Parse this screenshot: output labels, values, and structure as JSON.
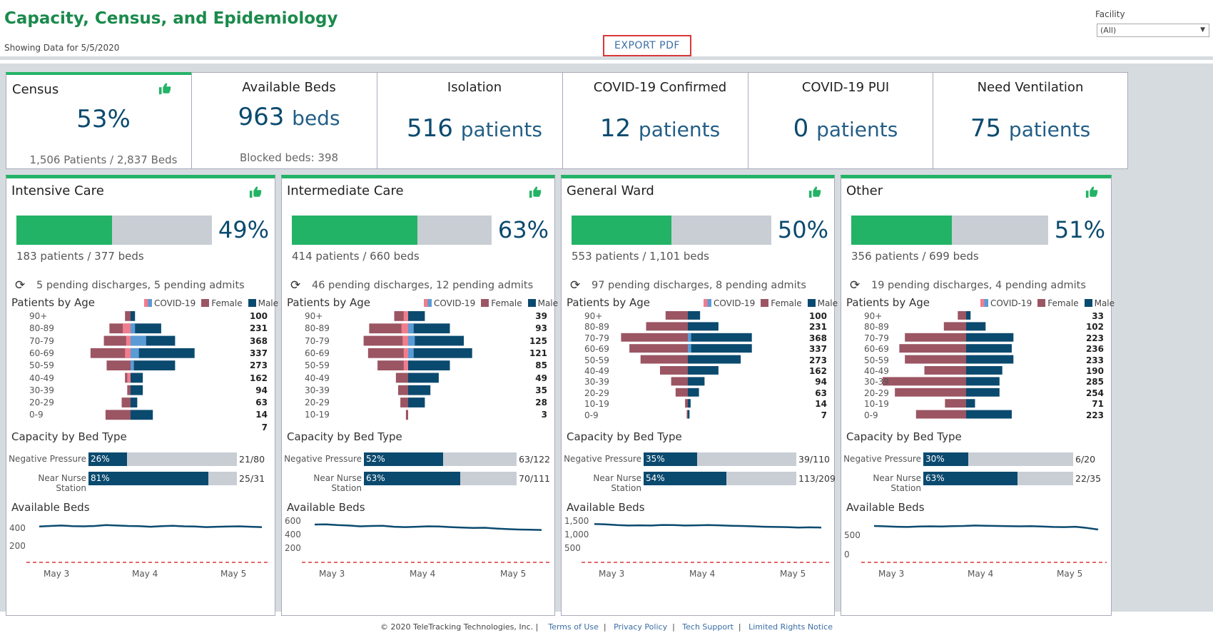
{
  "header": {
    "title": "Capacity, Census, and Epidemiology",
    "subtitle": "Showing Data for 5/5/2020",
    "export_label": "EXPORT PDF",
    "facility_label": "Facility",
    "facility_value": "(All)"
  },
  "kpis": [
    {
      "title": "Census",
      "value": "53%",
      "unit": "",
      "sub": "1,506 Patients / 2,837 Beds"
    },
    {
      "title": "Available Beds",
      "value": "963",
      "unit": "beds",
      "sub": "Blocked beds: 398"
    },
    {
      "title": "Isolation",
      "value": "516",
      "unit": "patients",
      "sub": ""
    },
    {
      "title": "COVID-19 Confirmed",
      "value": "12",
      "unit": "patients",
      "sub": ""
    },
    {
      "title": "COVID-19 PUI",
      "value": "0",
      "unit": "patients",
      "sub": ""
    },
    {
      "title": "Need Ventilation",
      "value": "75",
      "unit": "patients",
      "sub": ""
    }
  ],
  "legend": {
    "covid": "COVID-19",
    "female": "Female",
    "male": "Male"
  },
  "section_labels": {
    "age": "Patients by Age",
    "capacity": "Capacity by Bed Type",
    "available": "Available Beds"
  },
  "colors": {
    "green": "#23b366",
    "grey": "#c8ced4",
    "navy": "#0b4a6f",
    "female": "#9b5563",
    "covid_pink": "#f07d8d",
    "covid_blue": "#5b9bd5",
    "dash_red": "#d9383a"
  },
  "units": [
    {
      "name": "Intensive Care",
      "pct": "49%",
      "fraction": 0.49,
      "count": "183 patients / 377 beds",
      "pending": "5 pending discharges,  5 pending admits",
      "ages": [
        {
          "label": "90+",
          "count": "100",
          "f": 10,
          "m": 8,
          "cf": 0,
          "cm": 0
        },
        {
          "label": "80-89",
          "count": "231",
          "f": 38,
          "m": 55,
          "cf": 14,
          "cm": 8
        },
        {
          "label": "70-79",
          "count": "368",
          "f": 48,
          "m": 80,
          "cf": 8,
          "cm": 28
        },
        {
          "label": "60-69",
          "count": "337",
          "f": 72,
          "m": 115,
          "cf": 10,
          "cm": 15
        },
        {
          "label": "50-59",
          "count": "273",
          "f": 43,
          "m": 80,
          "cf": 0,
          "cm": 6
        },
        {
          "label": "40-49",
          "count": "162",
          "f": 10,
          "m": 22,
          "cf": 6,
          "cm": 0
        },
        {
          "label": "30-39",
          "count": "94",
          "f": 6,
          "m": 22,
          "cf": 0,
          "cm": 0
        },
        {
          "label": "20-29",
          "count": "63",
          "f": 16,
          "m": 12,
          "cf": 0,
          "cm": 0
        },
        {
          "label": "0-9",
          "count": "14",
          "f": 45,
          "m": 40,
          "cf": 0,
          "cm": 0
        }
      ],
      "extra_count": "7",
      "capacity": [
        {
          "label": "Negative Pressure",
          "pct_label": "26%",
          "fraction": 0.26,
          "frac": "21/80"
        },
        {
          "label": "Near Nurse Station",
          "pct_label": "81%",
          "fraction": 0.81,
          "frac": "25/31"
        }
      ],
      "avail_ticks": [
        "400",
        "200"
      ],
      "x_ticks": [
        "May 3",
        "May 4",
        "May 5"
      ]
    },
    {
      "name": "Intermediate Care",
      "pct": "63%",
      "fraction": 0.63,
      "count": "414 patients / 660 beds",
      "pending": "46 pending discharges,  12 pending admits",
      "ages": [
        {
          "label": "90+",
          "count": "39",
          "f": 25,
          "m": 30,
          "cf": 8,
          "cm": 0
        },
        {
          "label": "80-89",
          "count": "93",
          "f": 70,
          "m": 75,
          "cf": 12,
          "cm": 10
        },
        {
          "label": "70-79",
          "count": "125",
          "f": 80,
          "m": 100,
          "cf": 10,
          "cm": 12
        },
        {
          "label": "60-69",
          "count": "121",
          "f": 72,
          "m": 115,
          "cf": 8,
          "cm": 10
        },
        {
          "label": "50-59",
          "count": "85",
          "f": 55,
          "m": 75,
          "cf": 8,
          "cm": 0
        },
        {
          "label": "40-49",
          "count": "49",
          "f": 22,
          "m": 55,
          "cf": 0,
          "cm": 0
        },
        {
          "label": "30-39",
          "count": "35",
          "f": 18,
          "m": 40,
          "cf": 0,
          "cm": 0
        },
        {
          "label": "20-29",
          "count": "28",
          "f": 14,
          "m": 30,
          "cf": 0,
          "cm": 0
        },
        {
          "label": "10-19",
          "count": "3",
          "f": 4,
          "m": 0,
          "cf": 0,
          "cm": 0
        }
      ],
      "extra_count": "",
      "capacity": [
        {
          "label": "Negative Pressure",
          "pct_label": "52%",
          "fraction": 0.52,
          "frac": "63/122"
        },
        {
          "label": "Near Nurse Station",
          "pct_label": "63%",
          "fraction": 0.63,
          "frac": "70/111"
        }
      ],
      "avail_ticks": [
        "600",
        "400",
        "200"
      ],
      "x_ticks": [
        "May 3",
        "May 4",
        "May 5"
      ]
    },
    {
      "name": "General Ward",
      "pct": "50%",
      "fraction": 0.5,
      "count": "553 patients / 1,101 beds",
      "pending": "97 pending discharges,  8 pending admits",
      "ages": [
        {
          "label": "90+",
          "count": "100",
          "f": 40,
          "m": 22,
          "cf": 0,
          "cm": 0
        },
        {
          "label": "80-89",
          "count": "231",
          "f": 75,
          "m": 55,
          "cf": 0,
          "cm": 0
        },
        {
          "label": "70-79",
          "count": "368",
          "f": 120,
          "m": 115,
          "cf": 0,
          "cm": 6
        },
        {
          "label": "60-69",
          "count": "337",
          "f": 105,
          "m": 115,
          "cf": 0,
          "cm": 6
        },
        {
          "label": "50-59",
          "count": "273",
          "f": 85,
          "m": 95,
          "cf": 0,
          "cm": 0
        },
        {
          "label": "40-49",
          "count": "162",
          "f": 50,
          "m": 55,
          "cf": 0,
          "cm": 0
        },
        {
          "label": "30-39",
          "count": "94",
          "f": 30,
          "m": 30,
          "cf": 0,
          "cm": 0
        },
        {
          "label": "20-29",
          "count": "63",
          "f": 22,
          "m": 20,
          "cf": 0,
          "cm": 0
        },
        {
          "label": "10-19",
          "count": "14",
          "f": 5,
          "m": 5,
          "cf": 0,
          "cm": 0
        },
        {
          "label": "0-9",
          "count": "7",
          "f": 2,
          "m": 3,
          "cf": 0,
          "cm": 0
        }
      ],
      "extra_count": "",
      "capacity": [
        {
          "label": "Negative Pressure",
          "pct_label": "35%",
          "fraction": 0.35,
          "frac": "39/110"
        },
        {
          "label": "Near Nurse Station",
          "pct_label": "54%",
          "fraction": 0.54,
          "frac": "113/209"
        }
      ],
      "avail_ticks": [
        "1,500",
        "1,000",
        "500"
      ],
      "x_ticks": [
        "May 3",
        "May 4",
        "May 5"
      ]
    },
    {
      "name": "Other",
      "pct": "51%",
      "fraction": 0.51,
      "count": "356 patients / 699 beds",
      "pending": "19 pending discharges,  4 pending admits",
      "ages": [
        {
          "label": "90+",
          "count": "33",
          "f": 15,
          "m": 8,
          "cf": 0,
          "cm": 0
        },
        {
          "label": "80-89",
          "count": "102",
          "f": 40,
          "m": 35,
          "cf": 0,
          "cm": 0
        },
        {
          "label": "70-79",
          "count": "223",
          "f": 110,
          "m": 85,
          "cf": 0,
          "cm": 0
        },
        {
          "label": "60-69",
          "count": "236",
          "f": 120,
          "m": 82,
          "cf": 0,
          "cm": 0
        },
        {
          "label": "50-59",
          "count": "233",
          "f": 110,
          "m": 85,
          "cf": 0,
          "cm": 0
        },
        {
          "label": "40-49",
          "count": "190",
          "f": 75,
          "m": 65,
          "cf": 0,
          "cm": 0
        },
        {
          "label": "30-39",
          "count": "285",
          "f": 150,
          "m": 60,
          "cf": 0,
          "cm": 0
        },
        {
          "label": "20-29",
          "count": "254",
          "f": 128,
          "m": 60,
          "cf": 0,
          "cm": 0
        },
        {
          "label": "10-19",
          "count": "71",
          "f": 38,
          "m": 16,
          "cf": 0,
          "cm": 0
        },
        {
          "label": "0-9",
          "count": "223",
          "f": 90,
          "m": 82,
          "cf": 0,
          "cm": 0
        }
      ],
      "extra_count": "",
      "capacity": [
        {
          "label": "Negative Pressure",
          "pct_label": "30%",
          "fraction": 0.3,
          "frac": "6/20"
        },
        {
          "label": "Near Nurse Station",
          "pct_label": "63%",
          "fraction": 0.63,
          "frac": "22/35"
        }
      ],
      "avail_ticks": [
        "500",
        "0"
      ],
      "x_ticks": [
        "May 3",
        "May 4",
        "May 5"
      ]
    }
  ],
  "footer": {
    "copyright": "© 2020 TeleTracking Technologies, Inc.",
    "links": [
      "Terms of Use",
      "Privacy Policy",
      "Tech Support",
      "Limited Rights Notice"
    ]
  }
}
